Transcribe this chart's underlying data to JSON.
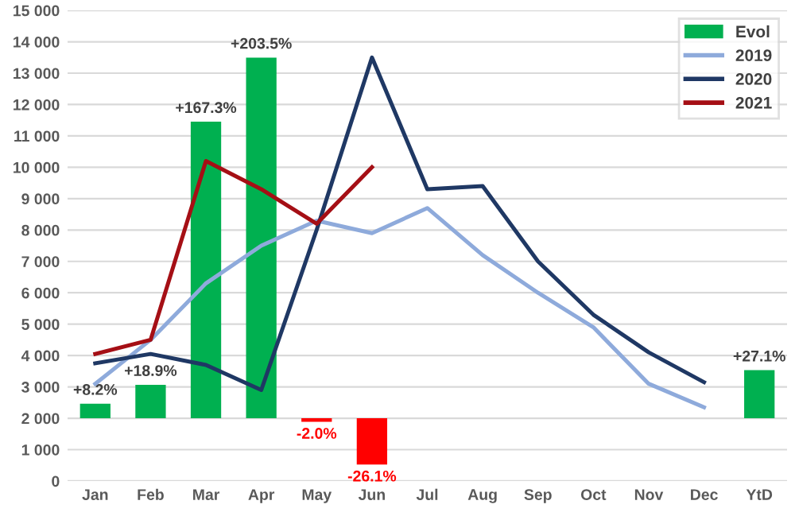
{
  "chart_data": {
    "type": "bar",
    "categories": [
      "Jan",
      "Feb",
      "Mar",
      "Apr",
      "May",
      "Jun",
      "Jul",
      "Aug",
      "Sep",
      "Oct",
      "Nov",
      "Dec",
      "YtD"
    ],
    "series": [
      {
        "name": "Evol",
        "axis": "y2",
        "color": "#00b050",
        "colors": [
          "#00b050",
          "#00b050",
          "#00b050",
          "#00b050",
          "#ff0000",
          "#ff0000",
          null,
          null,
          null,
          null,
          null,
          null,
          "#00b050"
        ],
        "values": [
          8.2,
          18.9,
          167.3,
          203.5,
          -2.0,
          -26.1,
          null,
          null,
          null,
          null,
          null,
          null,
          27.1
        ],
        "value_labels": [
          "+8.2%",
          "+18.9%",
          "+167.3%",
          "+203.5%",
          "-2.0%",
          "-26.1%",
          null,
          null,
          null,
          null,
          null,
          null,
          "+27.1%"
        ]
      },
      {
        "name": "2019",
        "type": "line",
        "color": "#8eaadb",
        "values": [
          3100,
          4500,
          6300,
          7500,
          8300,
          7900,
          8700,
          7200,
          6000,
          4900,
          3100,
          2350,
          null
        ]
      },
      {
        "name": "2020",
        "type": "line",
        "color": "#1f3864",
        "values": [
          3750,
          4050,
          3700,
          2900,
          8000,
          13500,
          9300,
          9400,
          7000,
          5300,
          4100,
          3150,
          null
        ]
      },
      {
        "name": "2021",
        "type": "line",
        "color": "#a50f15",
        "values": [
          4050,
          4500,
          10200,
          9300,
          8200,
          10000,
          null,
          null,
          null,
          null,
          null,
          null,
          null
        ]
      }
    ],
    "ylim": [
      0,
      15000
    ],
    "yticks": [
      0,
      {
        "value": 1000,
        "label": "1 000"
      },
      {
        "value": 2000,
        "label": "2 000"
      },
      {
        "value": 3000,
        "label": "3 000"
      },
      {
        "value": 4000,
        "label": "4 000"
      },
      {
        "value": 5000,
        "label": "5 000"
      },
      {
        "value": 6000,
        "label": "6 000"
      },
      {
        "value": 7000,
        "label": "7 000"
      },
      {
        "value": 8000,
        "label": "8 000"
      },
      {
        "value": 9000,
        "label": "9 000"
      },
      {
        "value": 10000,
        "label": "10 000"
      },
      {
        "value": 11000,
        "label": "11 000"
      },
      {
        "value": 12000,
        "label": "12 000"
      },
      {
        "value": 13000,
        "label": "13 000"
      },
      {
        "value": 14000,
        "label": "14 000"
      },
      {
        "value": 15000,
        "label": "15 000"
      }
    ],
    "y2lim": [
      -35.4,
      230.1
    ],
    "grid": "y",
    "legend": "top right",
    "marker": "none",
    "line_style": "solid"
  }
}
